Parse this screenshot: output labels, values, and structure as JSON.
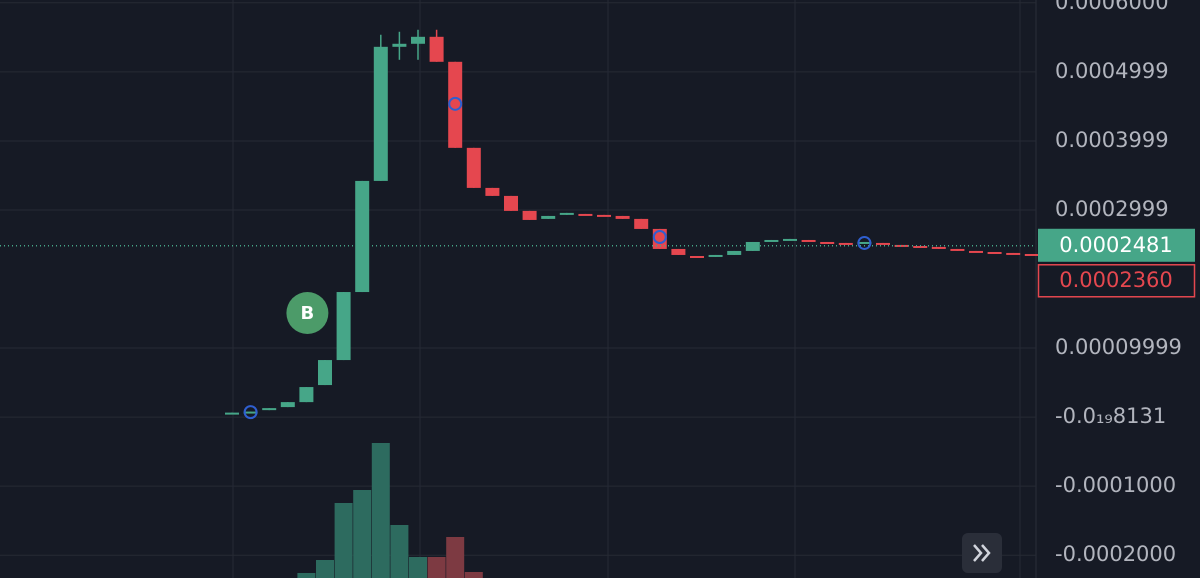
{
  "chart_data": {
    "type": "candlestick",
    "up_color": "#46a688",
    "down_color": "#e5474f",
    "volume_up_color": "#2d6b5f",
    "volume_down_color": "#7d3a42",
    "marker_color": "#2f5fd0",
    "open": [
      5.8e-06,
      7.2e-06,
      1.01e-05,
      1.45e-05,
      2.17e-05,
      4.64e-05,
      8.26e-05,
      0.0001811,
      0.000342,
      0.0005362,
      0.0005406,
      0.0005507,
      0.0005145,
      0.0003899,
      0.0003319,
      0.0003203,
      0.0002986,
      0.000287,
      0.0002928,
      0.0002942,
      0.0002928,
      0.0002913,
      0.000287,
      0.0002725,
      0.0002435,
      0.0002333,
      0.0002319,
      0.0002348,
      0.0002406,
      0.0002551,
      0.0002565,
      0.0002565,
      0.0002536,
      0.0002522,
      0.0002522,
      0.0002522,
      0.0002493,
      0.0002478,
      0.0002464,
      0.0002435,
      0.0002406,
      0.0002391,
      0.0002377,
      0.0002362
    ],
    "close": [
      6.5e-06,
      8e-06,
      1.3e-05,
      2.17e-05,
      4.35e-05,
      8.26e-05,
      0.0001811,
      0.000342,
      0.0005362,
      0.0005406,
      0.0005507,
      0.0005145,
      0.0003899,
      0.0003319,
      0.0003203,
      0.0002986,
      0.0002855,
      0.0002913,
      0.0002957,
      0.0002928,
      0.0002913,
      0.000287,
      0.0002725,
      0.0002435,
      0.0002348,
      0.0002304,
      0.0002348,
      0.0002406,
      0.0002536,
      0.0002565,
      0.000258,
      0.0002536,
      0.0002522,
      0.0002507,
      0.0002536,
      0.0002507,
      0.0002478,
      0.0002464,
      0.0002435,
      0.0002406,
      0.0002391,
      0.0002377,
      0.0002362,
      0.0002348
    ],
    "high": [
      6.5e-06,
      8e-06,
      1.3e-05,
      2.17e-05,
      4.35e-05,
      8.26e-05,
      0.0001811,
      0.000342,
      0.0005536,
      0.000558,
      0.0005609,
      0.0005609,
      0.0005145,
      0.0003899,
      0.0003319,
      0.0003203,
      0.0002986,
      0.0002913,
      0.0002957,
      0.0002942,
      0.0002928,
      0.0002913,
      0.000287,
      0.0002725,
      0.0002435,
      0.0002333,
      0.0002348,
      0.0002406,
      0.0002536,
      0.0002565,
      0.000258,
      0.0002565,
      0.0002536,
      0.0002522,
      0.0002536,
      0.0002522,
      0.0002493,
      0.0002478,
      0.0002464,
      0.0002435,
      0.0002406,
      0.0002391,
      0.0002377,
      0.0002362
    ],
    "low": [
      5.8e-06,
      7.2e-06,
      1.01e-05,
      1.45e-05,
      2.17e-05,
      4.64e-05,
      8.26e-05,
      0.0001811,
      0.000342,
      0.0005174,
      0.0005174,
      0.0005145,
      0.0003899,
      0.0003319,
      0.0003203,
      0.0002986,
      0.0002855,
      0.000287,
      0.0002928,
      0.0002928,
      0.0002913,
      0.000287,
      0.0002725,
      0.0002435,
      0.0002348,
      0.0002304,
      0.0002319,
      0.0002348,
      0.0002406,
      0.0002551,
      0.0002565,
      0.0002536,
      0.0002522,
      0.0002507,
      0.0002522,
      0.0002507,
      0.0002478,
      0.0002464,
      0.0002435,
      0.0002406,
      0.0002391,
      0.0002377,
      0.0002362,
      0.0002348
    ],
    "volume": [
      null,
      null,
      null,
      null,
      5,
      18,
      75,
      88,
      135,
      53,
      21,
      21,
      41,
      6,
      null,
      null,
      null,
      null,
      null,
      null,
      null,
      null,
      null,
      null,
      null,
      null,
      null,
      null,
      null,
      null,
      null,
      null,
      null,
      null,
      null,
      null,
      null,
      null,
      null,
      null,
      null,
      null,
      null,
      null
    ],
    "marker_values": [
      null,
      7.2e-06,
      null,
      null,
      null,
      null,
      null,
      null,
      null,
      null,
      null,
      null,
      0.0004536,
      null,
      null,
      null,
      null,
      null,
      null,
      null,
      null,
      null,
      null,
      0.0002608,
      null,
      null,
      null,
      null,
      null,
      null,
      null,
      null,
      null,
      null,
      0.0002522,
      null,
      null,
      null,
      null,
      null,
      null,
      null,
      null,
      null
    ],
    "buy_text": "B",
    "buy_values": [
      null,
      null,
      null,
      null,
      0.0001507,
      null,
      null,
      null,
      null,
      null,
      null,
      null,
      null,
      null,
      null,
      null,
      null,
      null,
      null,
      null,
      null,
      null,
      null,
      null,
      null,
      null,
      null,
      null,
      null,
      null,
      null,
      null,
      null,
      null,
      null,
      null,
      null,
      null,
      null,
      null,
      null,
      null,
      null,
      null
    ],
    "ylim": [
      -0.000233,
      0.000604
    ],
    "yticks": [
      {
        "value": 0.0006,
        "label": "0.0006000"
      },
      {
        "value": 0.0004999,
        "label": "0.0004999"
      },
      {
        "value": 0.0003999,
        "label": "0.0003999"
      },
      {
        "value": 0.0002999,
        "label": "0.0002999"
      },
      {
        "value": 9.999e-05,
        "label": "0.00009999"
      },
      {
        "value": -8.131e-20,
        "label": "-0.0₁₉8131"
      },
      {
        "value": -0.0001,
        "label": "-0.0001000"
      },
      {
        "value": -0.0002,
        "label": "-0.0002000"
      }
    ],
    "last_price": {
      "value": 0.0002481,
      "label": "0.0002481"
    },
    "mark_price": {
      "value": 0.000236,
      "label": "0.0002360"
    },
    "grid": true
  }
}
